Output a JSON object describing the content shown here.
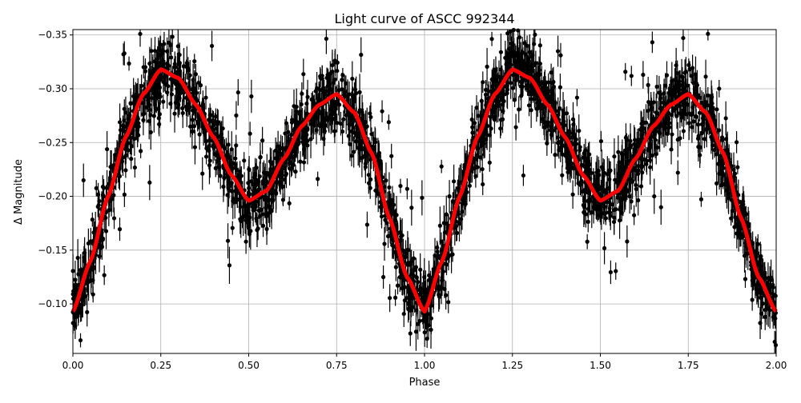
{
  "chart_data": {
    "type": "scatter",
    "title": "Light curve of ASCC 992344",
    "xlabel": "Phase",
    "ylabel": "Δ Magnitude",
    "xlim": [
      0,
      2
    ],
    "ylim": [
      -0.054,
      -0.355
    ],
    "y_inverted": true,
    "grid": true,
    "xticks": [
      0,
      0.25,
      0.5,
      0.75,
      1.0,
      1.25,
      1.5,
      1.75,
      2.0
    ],
    "xtick_labels": [
      "0.00",
      "0.25",
      "0.50",
      "0.75",
      "1.00",
      "1.25",
      "1.50",
      "1.75",
      "2.00"
    ],
    "yticks": [
      -0.35,
      -0.3,
      -0.25,
      -0.2,
      -0.15,
      -0.1
    ],
    "ytick_labels": [
      "−0.35",
      "−0.30",
      "−0.25",
      "−0.20",
      "−0.15",
      "−0.10"
    ],
    "colors": {
      "points": "#000000",
      "fit": "#ff0000",
      "grid": "#b0b0b0"
    },
    "fit_curve": {
      "phase": [
        0,
        0.05,
        0.1,
        0.15,
        0.2,
        0.25,
        0.3,
        0.35,
        0.4,
        0.45,
        0.5,
        0.55,
        0.6,
        0.65,
        0.7,
        0.75,
        0.8,
        0.85,
        0.9,
        0.95,
        1.0
      ],
      "magnitude": [
        -0.093,
        -0.14,
        -0.2,
        -0.255,
        -0.295,
        -0.318,
        -0.31,
        -0.285,
        -0.255,
        -0.22,
        -0.196,
        -0.205,
        -0.235,
        -0.265,
        -0.285,
        -0.295,
        -0.278,
        -0.24,
        -0.18,
        -0.125,
        -0.093
      ],
      "repeats_every": 1.0
    },
    "point_scatter_mag": 0.015
  }
}
